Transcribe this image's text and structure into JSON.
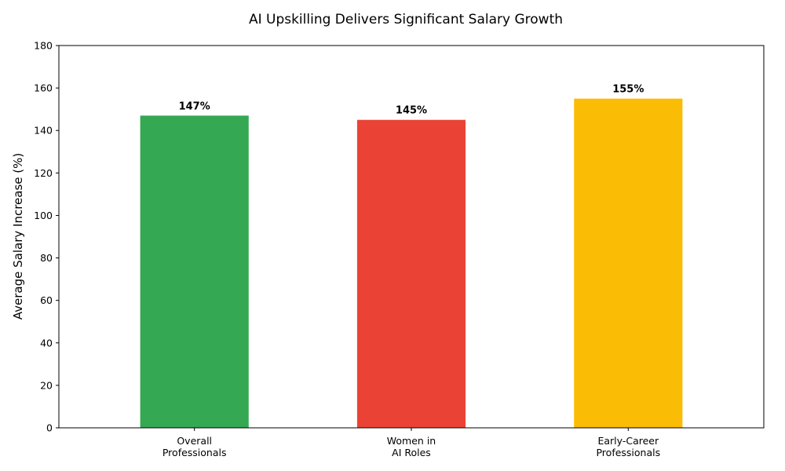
{
  "chart_data": {
    "type": "bar",
    "title": "AI Upskilling Delivers Significant Salary Growth",
    "xlabel": "",
    "ylabel": "Average Salary Increase (%)",
    "ylim": [
      0,
      180
    ],
    "yticks": [
      0,
      20,
      40,
      60,
      80,
      100,
      120,
      140,
      160,
      180
    ],
    "grid": false,
    "categories": [
      [
        "Overall",
        "Professionals"
      ],
      [
        "Women in",
        "AI Roles"
      ],
      [
        "Early-Career",
        "Professionals"
      ]
    ],
    "values": [
      147,
      145,
      155
    ],
    "data_labels": [
      "147%",
      "145%",
      "155%"
    ],
    "colors": [
      "#34a853",
      "#ea4335",
      "#fbbc05"
    ]
  }
}
